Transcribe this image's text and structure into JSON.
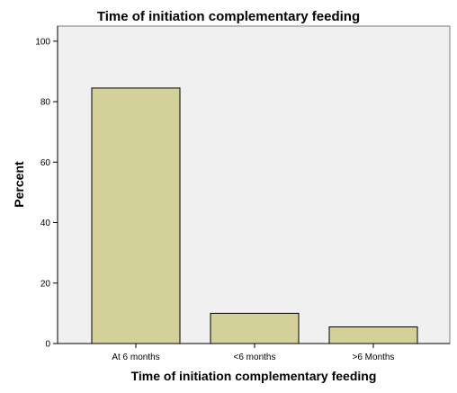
{
  "chart_data": {
    "type": "bar",
    "title": "Time of initiation complementary feeding",
    "xlabel": "Time of initiation complementary feeding",
    "ylabel": "Percent",
    "categories": [
      "At 6 months",
      "<6 months",
      ">6 Months"
    ],
    "values": [
      84.5,
      10.0,
      5.5
    ],
    "ylim": [
      0,
      105
    ],
    "yticks": [
      "0",
      "20",
      "40",
      "60",
      "80",
      "100"
    ],
    "grid": false,
    "legend": "none",
    "colors": {
      "bar_fill": "#d4d09a",
      "bar_stroke": "#000000",
      "plot_background": "#f0f0f0",
      "frame": "#7f7f7f"
    }
  }
}
